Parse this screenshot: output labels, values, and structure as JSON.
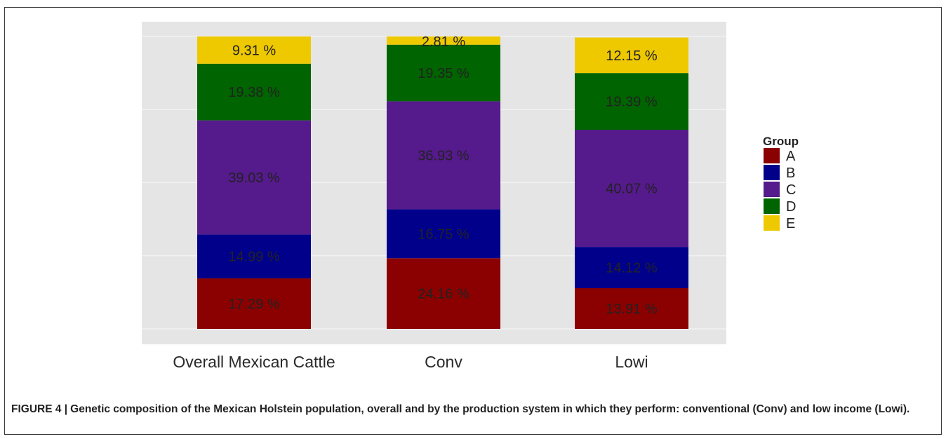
{
  "chart_data": {
    "type": "bar",
    "stacked": true,
    "stack_total": 100,
    "categories": [
      "Overall Mexican Cattle",
      "Conv",
      "Lowi"
    ],
    "series": [
      {
        "name": "A",
        "color": "#8b0000",
        "values": [
          17.29,
          24.16,
          13.91
        ],
        "labels": [
          "17.29 %",
          "24.16 %",
          "13.91 %"
        ]
      },
      {
        "name": "B",
        "color": "#00008b",
        "values": [
          14.99,
          16.75,
          14.12
        ],
        "labels": [
          "14.99 %",
          "16.75 %",
          "14.12 %"
        ]
      },
      {
        "name": "C",
        "color": "#551a8b",
        "values": [
          39.03,
          36.93,
          40.07
        ],
        "labels": [
          "39.03 %",
          "36.93 %",
          "40.07 %"
        ]
      },
      {
        "name": "D",
        "color": "#006400",
        "values": [
          19.38,
          19.35,
          19.39
        ],
        "labels": [
          "19.38 %",
          "19.35 %",
          "19.39 %"
        ]
      },
      {
        "name": "E",
        "color": "#eec900",
        "values": [
          9.31,
          2.81,
          12.15
        ],
        "labels": [
          "9.31 %",
          "2.81 %",
          "12.15 %"
        ]
      }
    ],
    "legend": {
      "title": "Group",
      "position": "right"
    },
    "grid": true,
    "panel_background": "#e5e5e5",
    "label_color": "#222222"
  },
  "caption": {
    "label": "FIGURE 4 |",
    "text": "Genetic composition of the Mexican Holstein population, overall and by the production system in which they perform: conventional (Conv) and low income (Lowi)."
  }
}
